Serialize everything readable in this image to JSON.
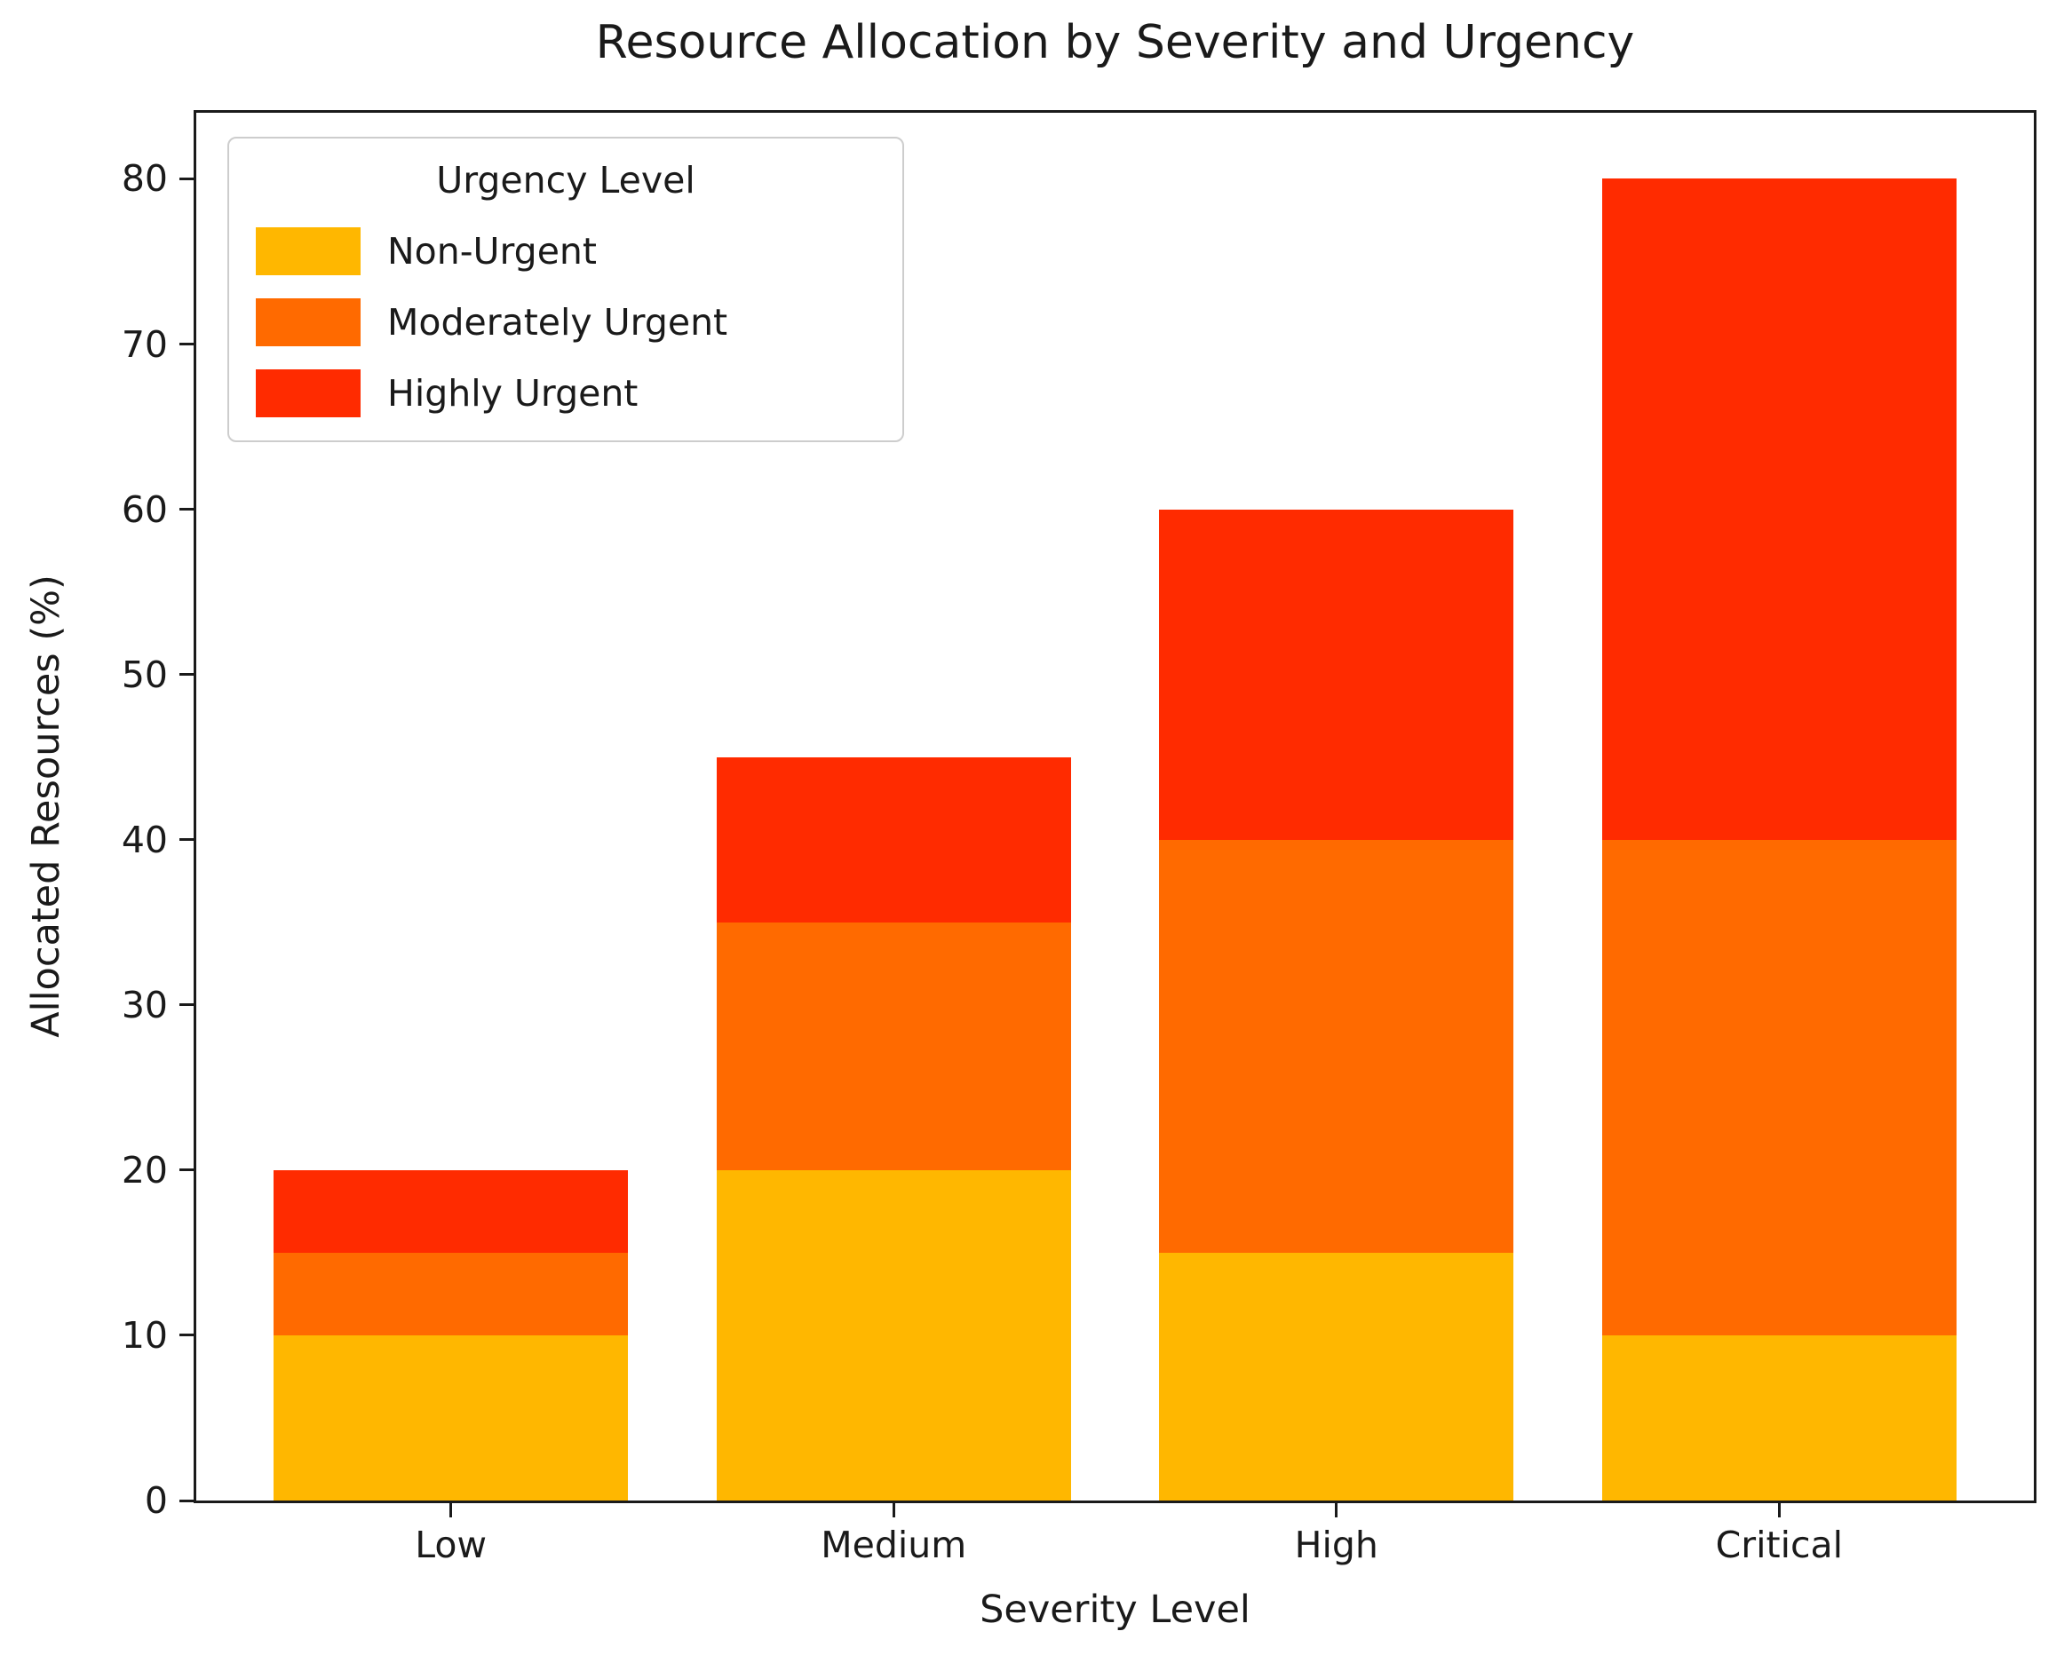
{
  "chart_data": {
    "type": "bar",
    "stacked": true,
    "title": "Resource Allocation by Severity and Urgency",
    "xlabel": "Severity Level",
    "ylabel": "Allocated Resources (%)",
    "categories": [
      "Low",
      "Medium",
      "High",
      "Critical"
    ],
    "series": [
      {
        "name": "Non-Urgent",
        "color": "#FFB700",
        "values": [
          10,
          20,
          15,
          10
        ]
      },
      {
        "name": "Moderately Urgent",
        "color": "#FF6A00",
        "values": [
          5,
          15,
          25,
          30
        ]
      },
      {
        "name": "Highly Urgent",
        "color": "#FF2B00",
        "values": [
          5,
          10,
          20,
          40
        ]
      }
    ],
    "totals": [
      20,
      45,
      60,
      80
    ],
    "yticks": [
      0,
      10,
      20,
      30,
      40,
      50,
      60,
      70,
      80
    ],
    "ylim": [
      0,
      84
    ],
    "legend_title": "Urgency Level",
    "legend_position": "upper left",
    "grid": false,
    "colors": {
      "axis": "#1a1a1a",
      "background": "#ffffff",
      "legend_border": "#cdcdcd"
    }
  }
}
